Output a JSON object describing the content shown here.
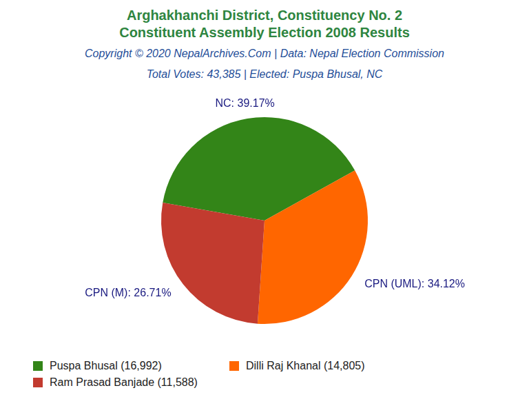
{
  "chart_data": {
    "type": "pie",
    "title": [
      "Arghakhanchi District, Constituency No. 2",
      "Constituent Assembly Election 2008 Results"
    ],
    "subtitle": [
      "Copyright © 2020 NepalArchives.Com | Data: Nepal Election Commission",
      "Total Votes: 43,385 | Elected: Puspa Bhusal, NC"
    ],
    "categories": [
      "NC",
      "CPN (UML)",
      "CPN (M)"
    ],
    "values": [
      39.17,
      34.12,
      26.71
    ],
    "value_labels": [
      "NC: 39.17%",
      "CPN (UML): 34.12%",
      "CPN (M): 26.71%"
    ],
    "data_labels": true,
    "colors": [
      "#338518",
      "#ff6600",
      "#c23b2f"
    ],
    "legend": "bottom",
    "legend_labels": [
      "Puspa Bhusal (16,992)",
      "Dilli Raj Khanal (14,805)",
      "Ram Prasad Banjade (11,588)"
    ]
  }
}
